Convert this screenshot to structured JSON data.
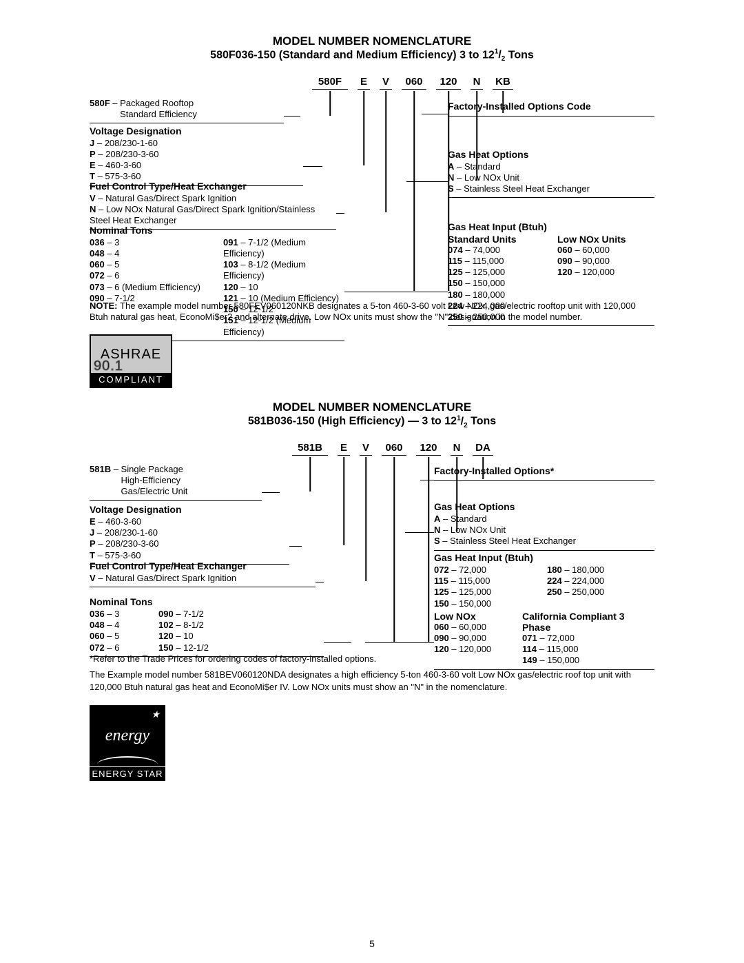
{
  "page_number": "5",
  "section1": {
    "heading": "MODEL NUMBER NOMENCLATURE",
    "subtitle_a": "580F036-150 (Standard and Medium Efficiency) 3 to 12",
    "subtitle_frac_num": "1",
    "subtitle_frac_den": "2",
    "subtitle_b": " Tons",
    "codes": [
      "580F",
      "E",
      "V",
      "060",
      "120",
      "N",
      "KB"
    ],
    "left_boxes": [
      {
        "title_code": "580F",
        "title_sep": " – ",
        "title_text": "Packaged Rooftop\nStandard Efficiency"
      },
      {
        "heading": "Voltage Designation",
        "rows": [
          {
            "c": "J",
            "t": "208/230-1-60"
          },
          {
            "c": "P",
            "t": "208/230-3-60"
          },
          {
            "c": "E",
            "t": "460-3-60"
          },
          {
            "c": "T",
            "t": "575-3-60"
          }
        ]
      },
      {
        "heading": "Fuel Control Type/Heat Exchanger",
        "rows": [
          {
            "c": "V",
            "t": "Natural Gas/Direct Spark Ignition"
          },
          {
            "c": "N",
            "t": "Low NOx Natural Gas/Direct Spark Ignition/Stainless Steel Heat Exchanger"
          }
        ]
      },
      {
        "heading": "Nominal Tons",
        "cols": [
          [
            {
              "c": "036",
              "t": "3"
            },
            {
              "c": "048",
              "t": "4"
            },
            {
              "c": "060",
              "t": "5"
            },
            {
              "c": "072",
              "t": "6"
            },
            {
              "c": "073",
              "t": "6 (Medium Efficiency)"
            },
            {
              "c": "090",
              "t": "7-1/2"
            }
          ],
          [
            {
              "c": "091",
              "t": "7-1/2 (Medium Efficiency)"
            },
            {
              "c": "103",
              "t": "8-1/2 (Medium Efficiency)"
            },
            {
              "c": "120",
              "t": "10"
            },
            {
              "c": "121",
              "t": "10 (Medium Efficiency)"
            },
            {
              "c": "150",
              "t": "12-1/2"
            },
            {
              "c": "151",
              "t": "12-1/2 (Medium Efficiency)"
            }
          ]
        ]
      }
    ],
    "right_boxes": [
      {
        "heading": "Factory-Installed Options Code"
      },
      {
        "heading": "Gas Heat Options",
        "rows": [
          {
            "c": "A",
            "t": " Standard"
          },
          {
            "c": "N",
            "t": " Low NOx Unit"
          },
          {
            "c": "S",
            "t": " Stainless Steel Heat Exchanger"
          }
        ]
      },
      {
        "heading": "Gas Heat Input (Btuh)",
        "sub1": "Standard Units",
        "sub2": "Low NOx Units",
        "col1": [
          {
            "c": "074",
            "t": "74,000"
          },
          {
            "c": "115",
            "t": "115,000"
          },
          {
            "c": "125",
            "t": "125,000"
          },
          {
            "c": "150",
            "t": "150,000"
          },
          {
            "c": "180",
            "t": "180,000"
          },
          {
            "c": "224",
            "t": "224,000"
          },
          {
            "c": "250",
            "t": "250,000"
          }
        ],
        "col2": [
          {
            "c": "060",
            "t": "60,000"
          },
          {
            "c": "090",
            "t": "90,000"
          },
          {
            "c": "120",
            "t": "120,000"
          }
        ]
      }
    ],
    "note_label": "NOTE: ",
    "note_text": "The example model number 580FEV060120NKB designates a 5-ton 460-3-60 volt Low NOx, gas/electric rooftop unit with 120,000 Btuh natural gas heat, EconoMi$er2 and alternate drive. Low NOx units must show the \"N\" designation in the model number."
  },
  "ashrae": {
    "top": "ASHRAE",
    "num": "90.1",
    "bot": "COMPLIANT"
  },
  "section2": {
    "heading": "MODEL NUMBER NOMENCLATURE",
    "subtitle_a": "581B036-150 (High Efficiency) — 3 to 12",
    "subtitle_frac_num": "1",
    "subtitle_frac_den": "2",
    "subtitle_b": " Tons",
    "codes": [
      "581B",
      "E",
      "V",
      "060",
      "120",
      "N",
      "DA"
    ],
    "left_boxes": [
      {
        "title_code": "581B",
        "title_sep": " – ",
        "title_text": "Single Package\nHigh-Efficiency\nGas/Electric Unit"
      },
      {
        "heading": "Voltage Designation",
        "rows": [
          {
            "c": "E",
            "t": "460-3-60"
          },
          {
            "c": "J",
            "t": "208/230-1-60"
          },
          {
            "c": "P",
            "t": "208/230-3-60"
          },
          {
            "c": "T",
            "t": "575-3-60"
          }
        ]
      },
      {
        "heading": "Fuel Control Type/Heat Exchanger",
        "rows": [
          {
            "c": "V",
            "t": "Natural Gas/Direct Spark Ignition"
          }
        ]
      },
      {
        "heading": "Nominal Tons",
        "cols": [
          [
            {
              "c": "036",
              "t": "3"
            },
            {
              "c": "048",
              "t": "4"
            },
            {
              "c": "060",
              "t": "5"
            },
            {
              "c": "072",
              "t": "6"
            }
          ],
          [
            {
              "c": "090",
              "t": "7-1/2"
            },
            {
              "c": "102",
              "t": "8-1/2"
            },
            {
              "c": "120",
              "t": "10"
            },
            {
              "c": "150",
              "t": "12-1/2"
            }
          ]
        ]
      }
    ],
    "right_boxes": [
      {
        "heading": "Factory-Installed Options*"
      },
      {
        "heading": "Gas Heat Options",
        "rows": [
          {
            "c": "A",
            "t": " Standard"
          },
          {
            "c": "N",
            "t": " Low NOx Unit"
          },
          {
            "c": "S",
            "t": " Stainless Steel Heat Exchanger"
          }
        ]
      },
      {
        "heading": "Gas Heat Input (Btuh)",
        "col1": [
          {
            "c": "072",
            "t": "72,000"
          },
          {
            "c": "115",
            "t": "115,000"
          },
          {
            "c": "125",
            "t": "125,000"
          },
          {
            "c": "150",
            "t": "150,000"
          }
        ],
        "col2": [
          {
            "c": "180",
            "t": "180,000"
          },
          {
            "c": "224",
            "t": "224,000"
          },
          {
            "c": "250",
            "t": "250,000"
          }
        ],
        "sub3": "Low NOx",
        "sub4": "California Compliant 3 Phase",
        "col3": [
          {
            "c": "060",
            "t": "60,000"
          },
          {
            "c": "090",
            "t": "90,000"
          },
          {
            "c": "120",
            "t": "120,000"
          }
        ],
        "col4": [
          {
            "c": "071",
            "t": "72,000"
          },
          {
            "c": "114",
            "t": "115,000"
          },
          {
            "c": "149",
            "t": "150,000"
          }
        ]
      }
    ],
    "footnote1": "*Refer to the Trade Prices for ordering codes of factory-installed options.",
    "footnote2": "The Example model number 581BEV060120NDA designates a high efficiency 5-ton 460-3-60 volt Low NOx gas/electric roof top unit with 120,000 Btuh natural gas heat and EconoMi$er IV. Low NOx units must show an \"N\" in the nomenclature."
  },
  "estar": {
    "word": "energy",
    "bot": "ENERGY STAR"
  },
  "colors": {
    "text": "#000000",
    "bg": "#ffffff",
    "rule": "#000000"
  }
}
